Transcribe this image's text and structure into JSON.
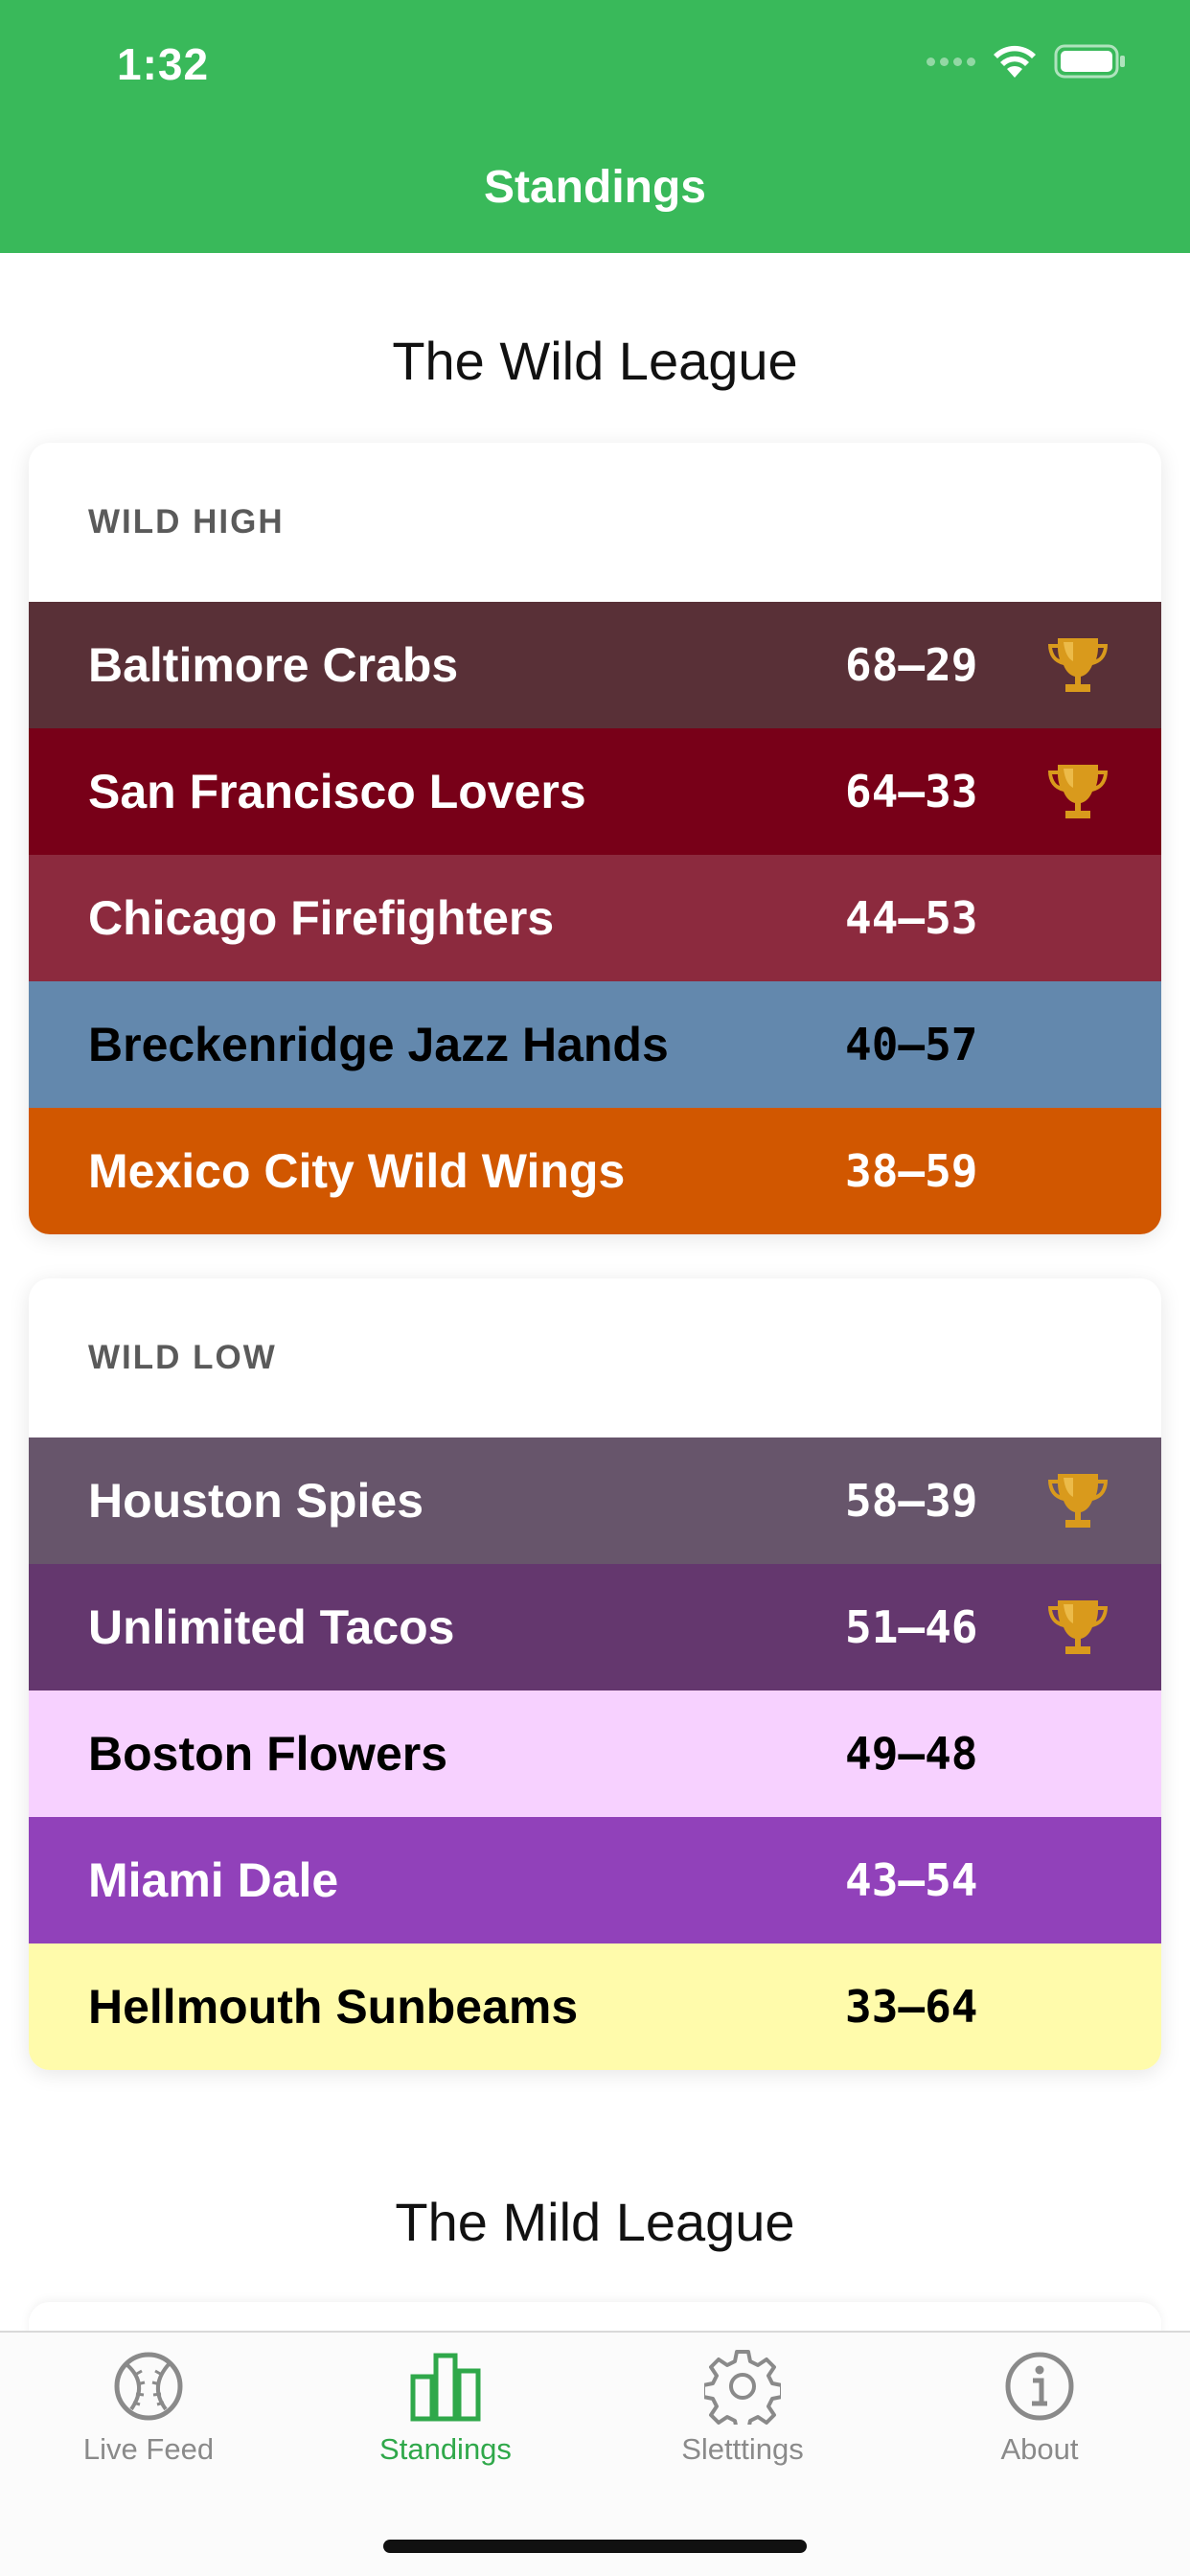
{
  "status_bar": {
    "time": "1:32"
  },
  "nav": {
    "title": "Standings"
  },
  "leagues": [
    {
      "title": "The Wild League",
      "divisions": [
        {
          "name": "WILD HIGH",
          "teams": [
            {
              "name": "Baltimore Crabs",
              "record": "68–29",
              "bg": "#593037",
              "fg": "#ffffff",
              "trophy": true
            },
            {
              "name": "San Francisco Lovers",
              "record": "64–33",
              "bg": "#780018",
              "fg": "#ffffff",
              "trophy": true
            },
            {
              "name": "Chicago Firefighters",
              "record": "44–53",
              "bg": "#8c2a3e",
              "fg": "#ffffff",
              "trophy": false
            },
            {
              "name": "Breckenridge Jazz Hands",
              "record": "40–57",
              "bg": "#6388ad",
              "fg": "#000000",
              "trophy": false
            },
            {
              "name": "Mexico City Wild Wings",
              "record": "38–59",
              "bg": "#d15700",
              "fg": "#ffffff",
              "trophy": false
            }
          ]
        },
        {
          "name": "WILD LOW",
          "teams": [
            {
              "name": "Houston Spies",
              "record": "58–39",
              "bg": "#67556b",
              "fg": "#ffffff",
              "trophy": true
            },
            {
              "name": "Unlimited Tacos",
              "record": "51–46",
              "bg": "#64376e",
              "fg": "#ffffff",
              "trophy": true
            },
            {
              "name": "Boston Flowers",
              "record": "49–48",
              "bg": "#f7d1ff",
              "fg": "#000000",
              "trophy": false
            },
            {
              "name": "Miami Dale",
              "record": "43–54",
              "bg": "#9141ba",
              "fg": "#ffffff",
              "trophy": false
            },
            {
              "name": "Hellmouth Sunbeams",
              "record": "33–64",
              "bg": "#fffbab",
              "fg": "#000000",
              "trophy": false
            }
          ]
        }
      ]
    },
    {
      "title": "The Mild League"
    }
  ],
  "tabs": [
    {
      "label": "Live Feed",
      "icon": "baseball-icon",
      "active": false
    },
    {
      "label": "Standings",
      "icon": "bar-chart-icon",
      "active": true
    },
    {
      "label": "Sletttings",
      "icon": "gear-icon",
      "active": false
    },
    {
      "label": "About",
      "icon": "info-icon",
      "active": false
    }
  ],
  "colors": {
    "header": "#39b95a",
    "active_tab": "#2fa84a",
    "inactive_tab": "#8a8a8a"
  }
}
